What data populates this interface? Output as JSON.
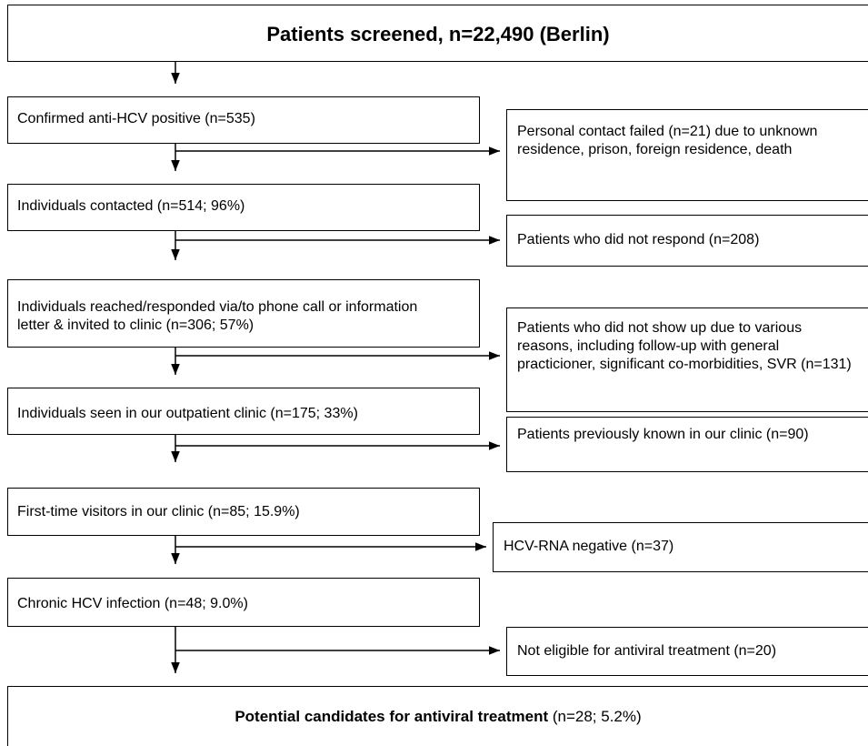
{
  "header": {
    "title": "Patients screened, n=22,490 (Berlin)"
  },
  "steps": [
    "Confirmed anti-HCV positive (n=535)",
    "Individuals contacted (n=514; 96%)",
    "Individuals reached/responded via/to phone call or information letter & invited to clinic (n=306; 57%)",
    "Individuals seen in our outpatient clinic (n=175; 33%)",
    "First-time visitors in our clinic (n=85; 15.9%)",
    "Chronic HCV infection (n=48; 9.0%)"
  ],
  "exclusions": [
    "Personal contact failed (n=21) due to unknown residence, prison, foreign residence, death",
    "Patients who did not respond (n=208)",
    "Patients who did not show up due to various reasons, including follow-up with general practicioner, significant co-morbidities, SVR (n=131)",
    "Patients previously known in our clinic (n=90)",
    "HCV-RNA negative (n=37)",
    "Not eligible for antiviral treatment (n=20)"
  ],
  "result": {
    "title": "Potential candidates for antiviral treatment",
    "detail": "(n=28; 5.2%)"
  }
}
